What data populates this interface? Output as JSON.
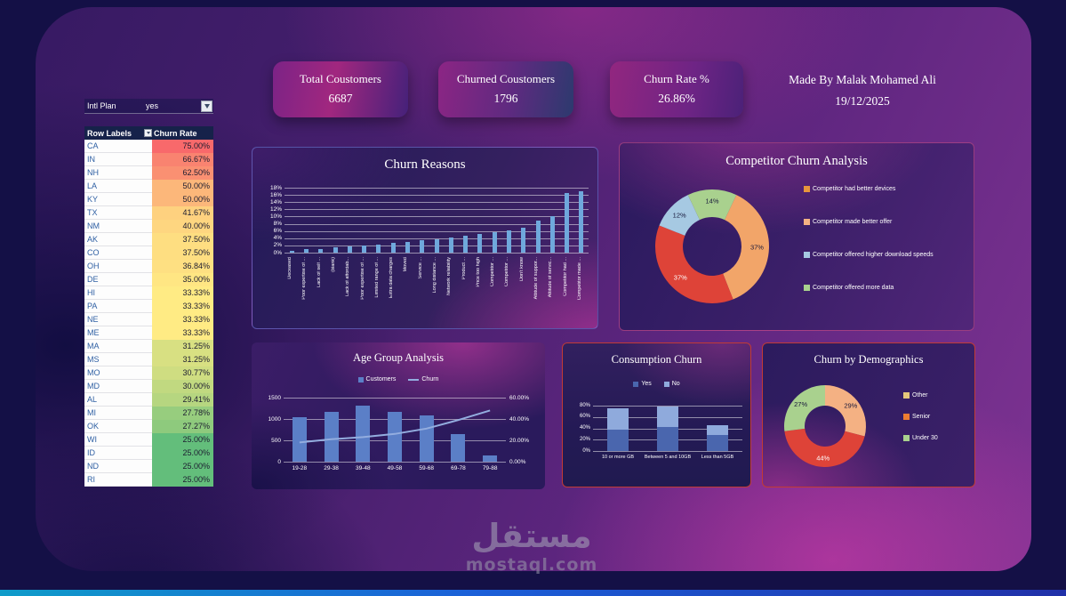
{
  "page": {
    "watermark": {
      "arabic": "مستقل",
      "latin": "mostaql.com"
    }
  },
  "kpis": [
    {
      "title": "Total Coustomers",
      "value": "6687"
    },
    {
      "title": "Churned Coustomers",
      "value": "1796"
    },
    {
      "title": "Churn Rate %",
      "value": "26.86%"
    }
  ],
  "made_by": {
    "line1": "Made By Malak Mohamed Ali",
    "line2": "19/12/2025"
  },
  "pivot_table": {
    "filter_label": "Intl Plan",
    "filter_value": "yes",
    "columns": [
      "Row Labels",
      "Churn Rate"
    ],
    "rows": [
      {
        "state": "CA",
        "rate": "75.00%"
      },
      {
        "state": "IN",
        "rate": "66.67%"
      },
      {
        "state": "NH",
        "rate": "62.50%"
      },
      {
        "state": "LA",
        "rate": "50.00%"
      },
      {
        "state": "KY",
        "rate": "50.00%"
      },
      {
        "state": "TX",
        "rate": "41.67%"
      },
      {
        "state": "NM",
        "rate": "40.00%"
      },
      {
        "state": "AK",
        "rate": "37.50%"
      },
      {
        "state": "CO",
        "rate": "37.50%"
      },
      {
        "state": "OH",
        "rate": "36.84%"
      },
      {
        "state": "DE",
        "rate": "35.00%"
      },
      {
        "state": "HI",
        "rate": "33.33%"
      },
      {
        "state": "PA",
        "rate": "33.33%"
      },
      {
        "state": "NE",
        "rate": "33.33%"
      },
      {
        "state": "ME",
        "rate": "33.33%"
      },
      {
        "state": "MA",
        "rate": "31.25%"
      },
      {
        "state": "MS",
        "rate": "31.25%"
      },
      {
        "state": "MO",
        "rate": "30.77%"
      },
      {
        "state": "MD",
        "rate": "30.00%"
      },
      {
        "state": "AL",
        "rate": "29.41%"
      },
      {
        "state": "MI",
        "rate": "27.78%"
      },
      {
        "state": "OK",
        "rate": "27.27%"
      },
      {
        "state": "WI",
        "rate": "25.00%"
      },
      {
        "state": "ID",
        "rate": "25.00%"
      },
      {
        "state": "ND",
        "rate": "25.00%"
      },
      {
        "state": "RI",
        "rate": "25.00%"
      }
    ],
    "heatmap": {
      "min": 25,
      "mid": 33.33,
      "max": 75,
      "min_color": "#63BE7B",
      "mid_color": "#FFEB84",
      "max_color": "#F8696B"
    }
  },
  "chart_data": [
    {
      "id": "churn_reasons",
      "type": "bar",
      "title": "Churn Reasons",
      "categories": [
        "Deceased",
        "Poor expertise of ...",
        "Lack of self ...",
        "(blank)",
        "Lack of affordab...",
        "Poor expertise of ...",
        "Limited range of ...",
        "Extra data charges",
        "Moved",
        "Service ...",
        "Long distance ...",
        "Network reliability",
        "Product ...",
        "Price too high",
        "Competitor ...",
        "Competitor ...",
        "Don't know",
        "Attitude of suppor...",
        "Attitude of servic...",
        "Competitor had ...",
        "Competitor made ..."
      ],
      "values": [
        0.6,
        0.9,
        1.0,
        1.4,
        1.7,
        2.0,
        2.2,
        2.6,
        3.0,
        3.4,
        3.8,
        4.2,
        4.7,
        5.2,
        5.7,
        6.2,
        7.0,
        9.0,
        10.0,
        16.5,
        17.0
      ],
      "ylim": [
        0,
        18
      ],
      "yticks": [
        0,
        2,
        4,
        6,
        8,
        10,
        12,
        14,
        16,
        18
      ],
      "bar_color": "#6FA8DC",
      "grid": true
    },
    {
      "id": "competitor",
      "type": "pie",
      "title": "Competitor Churn Analysis",
      "start_deg": 25.2,
      "slices": [
        {
          "label": "Competitor made better offer",
          "value": 37,
          "color": "#F2A569",
          "text_color": "#17173a"
        },
        {
          "label": "Competitor had better devices",
          "value": 37,
          "color": "#DE4338",
          "text_color": "#ffffff"
        },
        {
          "label": "Competitor offered higher download speeds",
          "value": 12,
          "color": "#A6C9E2",
          "text_color": "#17173a"
        },
        {
          "label": "Competitor offered more data",
          "value": 14,
          "color": "#A9D18E",
          "text_color": "#17173a"
        }
      ],
      "legend": [
        {
          "label": "Competitor had better devices",
          "color": "#E8963C"
        },
        {
          "label": "Competitor made better offer",
          "color": "#F4B183"
        },
        {
          "label": "Competitor offered higher download speeds",
          "color": "#A6C9E2"
        },
        {
          "label": "Competitor offered more data",
          "color": "#A9D18E"
        }
      ]
    },
    {
      "id": "age_group",
      "type": "bar+line",
      "title": "Age Group Analysis",
      "categories": [
        "19-28",
        "29-38",
        "39-48",
        "49-58",
        "59-68",
        "69-78",
        "79-88"
      ],
      "series": [
        {
          "name": "Customers",
          "type": "bar",
          "color": "#5B7FC7",
          "axis": "left",
          "values": [
            1050,
            1175,
            1320,
            1175,
            1075,
            650,
            150
          ]
        },
        {
          "name": "Churn",
          "type": "line",
          "color": "#93ADDF",
          "axis": "right",
          "values": [
            18,
            21,
            23,
            26,
            31,
            39,
            48
          ]
        }
      ],
      "left_axis": {
        "ticks": [
          0,
          500,
          1000,
          1500
        ],
        "labels": [
          "0",
          "500",
          "1000",
          "1500"
        ],
        "max": 1500
      },
      "right_axis": {
        "ticks": [
          0,
          20,
          40,
          60
        ],
        "labels": [
          "0.00%",
          "20.00%",
          "40.00%",
          "60.00%"
        ],
        "max": 60
      }
    },
    {
      "id": "consumption",
      "type": "stacked-bar",
      "title": "Consumption Churn",
      "categories": [
        "10 or more GB",
        "Between 5 and 10GB",
        "Less than 5GB"
      ],
      "series": [
        {
          "name": "Yes",
          "color": "#4A66AE",
          "values": [
            38,
            42,
            28
          ]
        },
        {
          "name": "No",
          "color": "#8FAADC",
          "values": [
            37,
            36,
            18
          ]
        }
      ],
      "yticks": [
        0,
        20,
        40,
        60,
        80
      ],
      "ytick_suffix": "%",
      "ymax": 80
    },
    {
      "id": "demographics",
      "type": "pie",
      "title": "Churn by Demographics",
      "start_deg": 0,
      "slices": [
        {
          "label": "Senior",
          "value": 29,
          "color": "#F4B183",
          "text_color": "#17173a"
        },
        {
          "label": "Under 30",
          "value": 44,
          "color": "#DE4338",
          "text_color": "#ffffff"
        },
        {
          "label": "Other",
          "value": 27,
          "color": "#A9D18E",
          "text_color": "#17173a"
        }
      ],
      "legend": [
        {
          "label": "Other",
          "color": "#E5C77B"
        },
        {
          "label": "Senior",
          "color": "#ED7D31"
        },
        {
          "label": "Under 30",
          "color": "#A9D18E"
        }
      ]
    }
  ]
}
